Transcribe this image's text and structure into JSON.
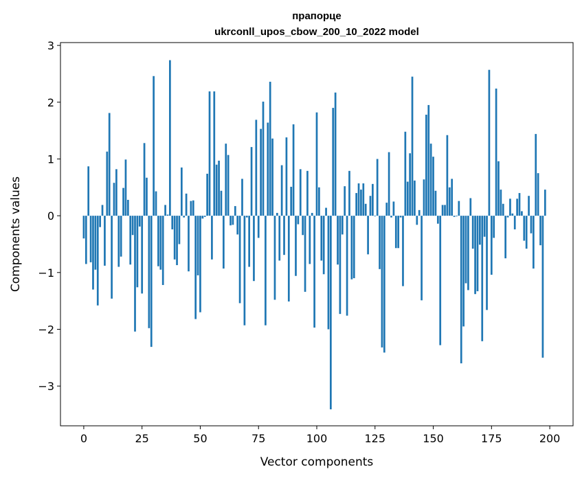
{
  "chart_data": {
    "type": "bar",
    "title_line1": "прапорце",
    "title_line2": "ukrconll_upos_cbow_200_10_2022 model",
    "xlabel": "Vector components",
    "ylabel": "Components values",
    "xlim": [
      -10,
      210
    ],
    "ylim": [
      -3.7,
      3.05
    ],
    "xticks": [
      0,
      25,
      50,
      75,
      100,
      125,
      150,
      175,
      200
    ],
    "xtick_labels": [
      "0",
      "25",
      "50",
      "75",
      "100",
      "125",
      "150",
      "175",
      "200"
    ],
    "yticks": [
      -3,
      -2,
      -1,
      0,
      1,
      2,
      3
    ],
    "ytick_labels": [
      "−3",
      "−2",
      "−1",
      "0",
      "1",
      "2",
      "3"
    ],
    "bar_color": "#1f77b4",
    "grid": false,
    "legend": "none",
    "values": [
      -0.4,
      -0.85,
      0.87,
      -0.82,
      -1.3,
      -0.95,
      -1.58,
      -0.2,
      0.19,
      -0.88,
      1.13,
      1.81,
      -1.46,
      0.58,
      0.82,
      -0.9,
      -0.72,
      0.49,
      0.99,
      0.28,
      -0.86,
      -0.34,
      -2.04,
      -1.26,
      -0.19,
      -1.37,
      1.28,
      0.67,
      -1.98,
      -2.31,
      2.46,
      0.43,
      -0.89,
      -0.95,
      -1.22,
      0.19,
      0.02,
      2.74,
      -0.24,
      -0.77,
      -0.87,
      -0.5,
      0.85,
      -0.03,
      0.39,
      -0.98,
      0.26,
      0.27,
      -1.82,
      -1.05,
      -1.7,
      -0.05,
      -0.02,
      0.74,
      2.19,
      -0.77,
      2.19,
      0.9,
      0.97,
      0.44,
      -0.93,
      1.27,
      1.07,
      -0.17,
      -0.16,
      0.17,
      -0.33,
      -1.54,
      0.65,
      -1.93,
      -0.03,
      -0.9,
      1.21,
      -1.15,
      1.69,
      -0.39,
      1.53,
      2.01,
      -1.93,
      1.64,
      2.36,
      1.36,
      -1.48,
      0.05,
      -0.79,
      0.89,
      -0.69,
      1.38,
      -1.51,
      0.51,
      1.61,
      -1.06,
      -0.15,
      0.82,
      -0.34,
      -1.34,
      0.79,
      -0.85,
      0.05,
      -1.97,
      1.82,
      0.5,
      -0.79,
      -1.03,
      0.14,
      -2.0,
      -3.41,
      1.9,
      2.17,
      -0.86,
      -1.73,
      -0.33,
      0.52,
      -1.76,
      0.79,
      -1.12,
      -1.1,
      0.4,
      0.57,
      0.46,
      0.57,
      0.21,
      -0.68,
      0.35,
      0.56,
      -0.01,
      1.0,
      -0.94,
      -2.32,
      -2.41,
      0.23,
      1.12,
      -0.03,
      0.25,
      -0.57,
      -0.57,
      -0.03,
      -1.24,
      1.48,
      0.6,
      1.1,
      2.45,
      0.62,
      -0.16,
      0.1,
      -1.49,
      0.64,
      1.78,
      1.95,
      1.27,
      1.04,
      0.44,
      -0.14,
      -2.28,
      0.19,
      0.19,
      1.42,
      0.5,
      0.65,
      -0.02,
      -0.01,
      0.26,
      -2.6,
      -1.95,
      -1.19,
      -1.31,
      0.31,
      -0.58,
      -1.38,
      -1.33,
      -0.51,
      -2.21,
      -0.37,
      -1.66,
      2.57,
      -1.04,
      -0.39,
      2.24,
      0.96,
      0.46,
      0.21,
      -0.75,
      -0.03,
      0.3,
      0.04,
      -0.24,
      0.3,
      0.4,
      0.08,
      -0.44,
      -0.58,
      0.35,
      -0.31,
      -0.93,
      1.44,
      0.75,
      -0.52,
      -2.5,
      0.46
    ]
  }
}
